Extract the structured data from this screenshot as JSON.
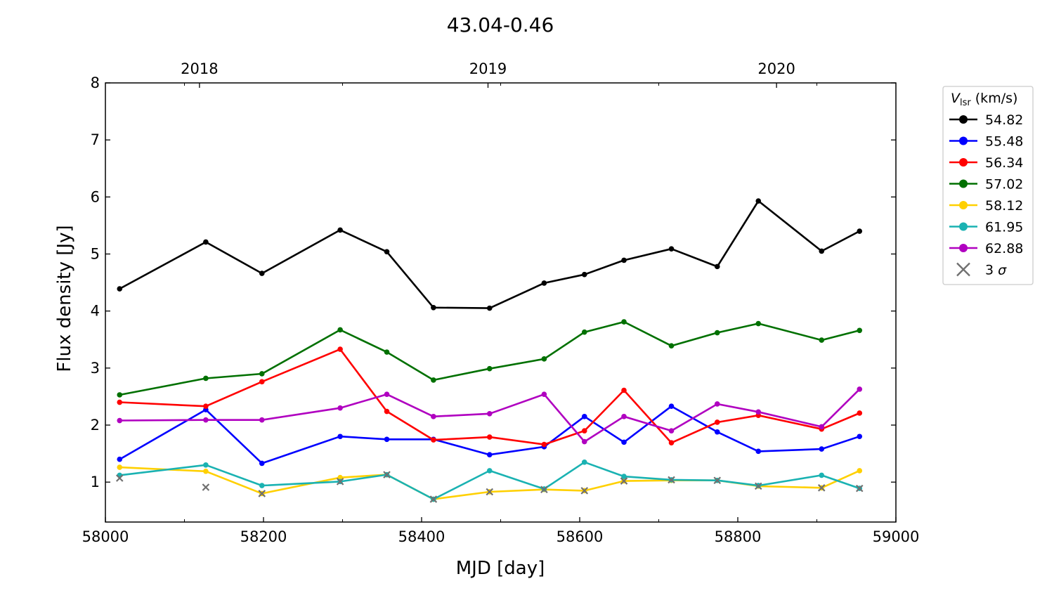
{
  "chart_data": {
    "type": "line",
    "title": "43.04-0.46",
    "xlabel": "MJD [day]",
    "ylabel": "Flux density [Jy]",
    "xlim": [
      58000,
      59000
    ],
    "ylim": [
      0.3,
      8
    ],
    "xticks": [
      58000,
      58200,
      58400,
      58600,
      58800,
      59000
    ],
    "yticks": [
      1,
      2,
      3,
      4,
      5,
      6,
      7,
      8
    ],
    "top_axis": {
      "labels": [
        {
          "mjd": 58119,
          "label": "2018"
        },
        {
          "mjd": 58484,
          "label": "2019"
        },
        {
          "mjd": 58849,
          "label": "2020"
        }
      ]
    },
    "x": [
      58018,
      58127,
      58198,
      58297,
      58356,
      58415,
      58486,
      58555,
      58606,
      58656,
      58716,
      58774,
      58826,
      58906,
      58954
    ],
    "series": [
      {
        "name": "54.82",
        "color": "#000000",
        "values": [
          4.39,
          5.21,
          4.66,
          5.42,
          5.04,
          4.06,
          4.05,
          4.49,
          4.64,
          4.89,
          5.09,
          4.78,
          5.93,
          5.05,
          5.4
        ]
      },
      {
        "name": "55.48",
        "color": "#0000ff",
        "values": [
          1.4,
          2.27,
          1.33,
          1.8,
          1.75,
          1.75,
          1.48,
          1.62,
          2.15,
          1.7,
          2.33,
          1.88,
          1.54,
          1.58,
          1.8
        ]
      },
      {
        "name": "56.34",
        "color": "#ff0000",
        "values": [
          2.4,
          2.33,
          2.76,
          3.33,
          2.24,
          1.74,
          1.79,
          1.66,
          1.9,
          2.61,
          1.69,
          2.05,
          2.17,
          1.93,
          2.21
        ]
      },
      {
        "name": "57.02",
        "color": "#007000",
        "values": [
          2.53,
          2.82,
          2.9,
          3.67,
          3.28,
          2.79,
          2.99,
          3.16,
          3.63,
          3.81,
          3.39,
          3.62,
          3.78,
          3.49,
          3.66
        ]
      },
      {
        "name": "58.12",
        "color": "#ffd000",
        "values": [
          1.26,
          1.19,
          0.8,
          1.08,
          1.13,
          0.7,
          0.83,
          0.87,
          0.85,
          1.02,
          1.03,
          1.03,
          0.93,
          0.9,
          1.2
        ]
      },
      {
        "name": "61.95",
        "color": "#1ab2b2",
        "values": [
          1.12,
          1.3,
          0.94,
          1.01,
          1.13,
          0.7,
          1.2,
          0.88,
          1.35,
          1.1,
          1.04,
          1.03,
          0.94,
          1.12,
          0.89
        ]
      },
      {
        "name": "62.88",
        "color": "#b000c0",
        "values": [
          2.08,
          2.09,
          2.09,
          2.3,
          2.54,
          2.15,
          2.2,
          2.54,
          1.71,
          2.15,
          1.9,
          2.37,
          2.23,
          1.97,
          2.63
        ]
      }
    ],
    "sigma3": {
      "name": "3 σ",
      "color": "#707070",
      "points": [
        {
          "x": 58018,
          "y": 1.07
        },
        {
          "x": 58127,
          "y": 0.91
        },
        {
          "x": 58198,
          "y": 0.8
        },
        {
          "x": 58297,
          "y": 1.01
        },
        {
          "x": 58356,
          "y": 1.13
        },
        {
          "x": 58415,
          "y": 0.7
        },
        {
          "x": 58486,
          "y": 0.83
        },
        {
          "x": 58555,
          "y": 0.87
        },
        {
          "x": 58606,
          "y": 0.85
        },
        {
          "x": 58656,
          "y": 1.02
        },
        {
          "x": 58716,
          "y": 1.04
        },
        {
          "x": 58774,
          "y": 1.03
        },
        {
          "x": 58826,
          "y": 0.93
        },
        {
          "x": 58906,
          "y": 0.9
        },
        {
          "x": 58954,
          "y": 0.89
        }
      ]
    },
    "legend": {
      "title_main": "V",
      "title_sub": "lsr",
      "title_unit": " (km/s)",
      "position": "right-outside"
    },
    "grid": false
  }
}
